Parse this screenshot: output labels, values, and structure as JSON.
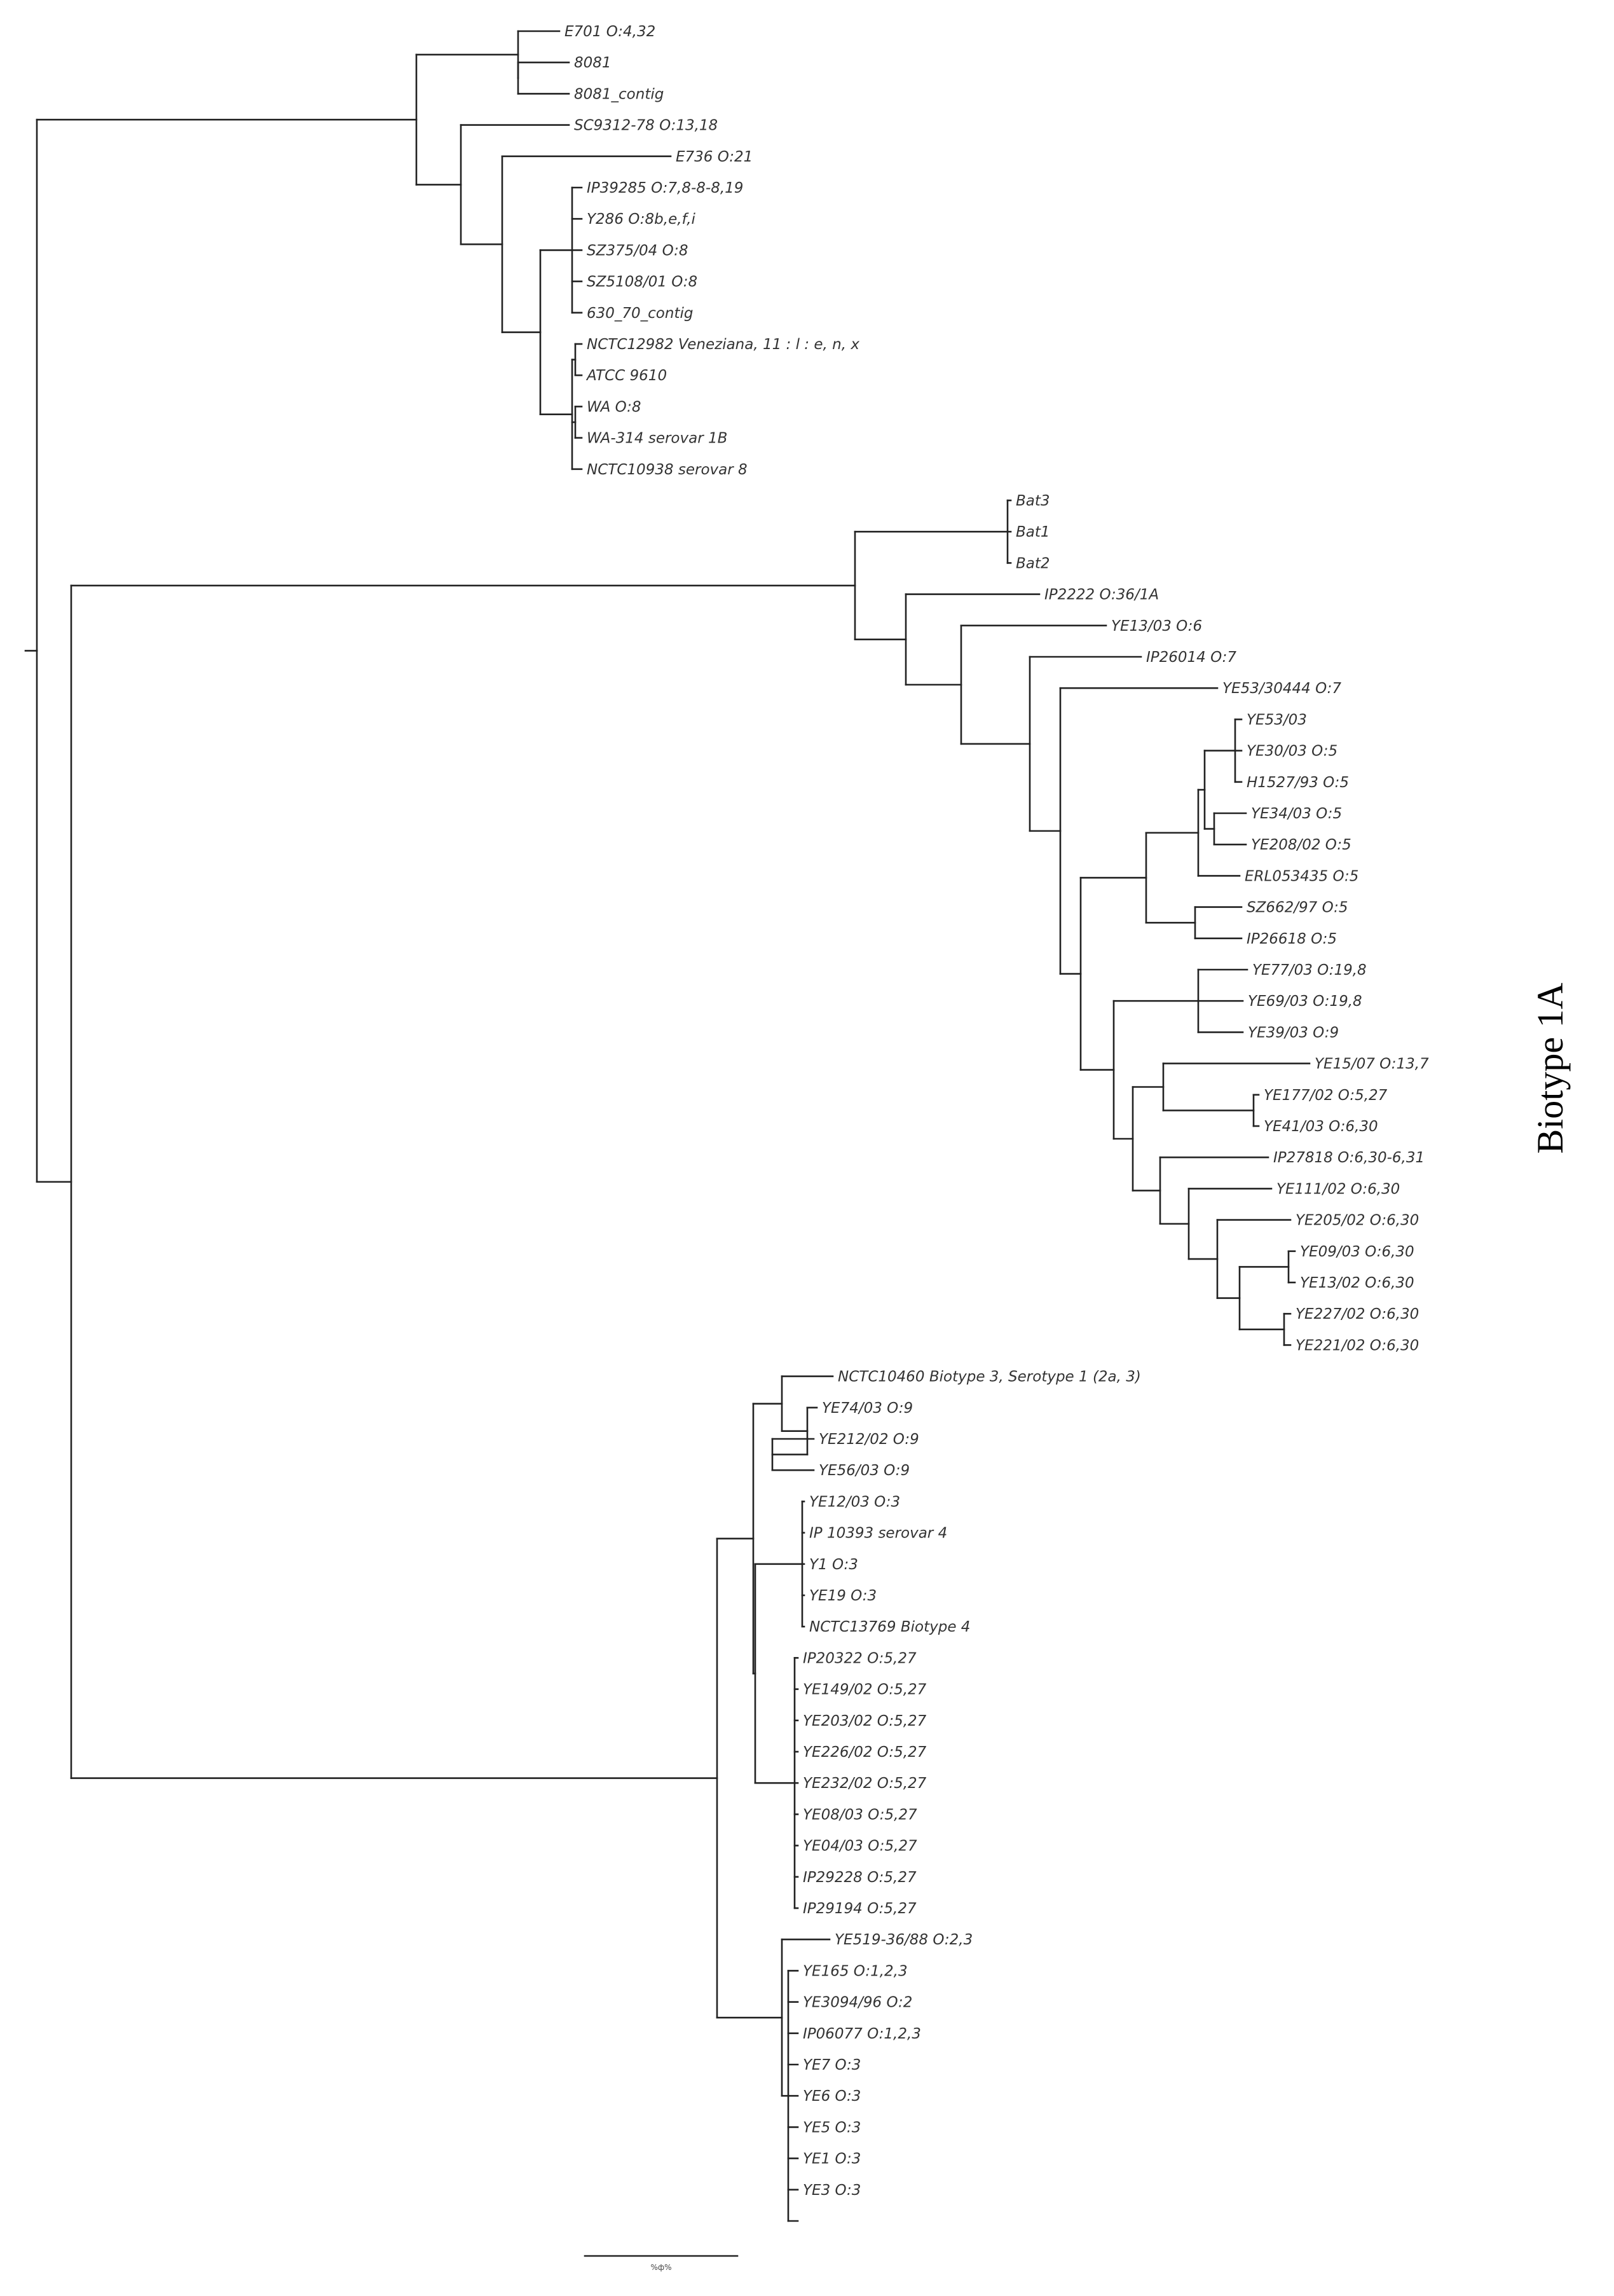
{
  "annotation": {
    "label": "Biotype 1A"
  },
  "scale_bar": {
    "label": "%ф%"
  },
  "taxa": [
    "E701 O:4,32",
    "8081",
    "8081_contig",
    "SC9312-78 O:13,18",
    "E736 O:21",
    "IP39285 O:7,8-8-8,19",
    "Y286 O:8b,e,f,i",
    "SZ375/04 O:8",
    "SZ5108/01 O:8",
    "630_70_contig",
    "NCTC12982 Veneziana, 11 : l : e, n, x",
    "ATCC 9610",
    "WA O:8",
    "WA-314 serovar 1B",
    "NCTC10938 serovar 8",
    "Bat3",
    "Bat1",
    "Bat2",
    "IP2222 O:36/1A",
    "YE13/03 O:6",
    "IP26014 O:7",
    "YE53/30444 O:7",
    "YE53/03",
    "YE30/03 O:5",
    "H1527/93 O:5",
    "YE34/03 O:5",
    "YE208/02 O:5",
    "ERL053435 O:5",
    "SZ662/97 O:5",
    "IP26618 O:5",
    "YE77/03 O:19,8",
    "YE69/03 O:19,8",
    "YE39/03 O:9",
    "YE15/07 O:13,7",
    "YE177/02 O:5,27",
    "YE41/03 O:6,30",
    "IP27818 O:6,30-6,31",
    "YE111/02 O:6,30",
    "YE205/02 O:6,30",
    "YE09/03 O:6,30",
    "YE13/02 O:6,30",
    "YE227/02 O:6,30",
    "YE221/02 O:6,30",
    "NCTC10460 Biotype 3, Serotype 1 (2a, 3)",
    "YE74/03 O:9",
    "YE212/02 O:9",
    "YE56/03 O:9",
    "YE12/03 O:3",
    "IP 10393 serovar 4",
    "Y1 O:3",
    "YE19 O:3",
    "NCTC13769 Biotype 4",
    "IP20322 O:5,27",
    "YE149/02 O:5,27",
    "YE203/02 O:5,27",
    "YE226/02 O:5,27",
    "YE232/02 O:5,27",
    "YE08/03 O:5,27",
    "YE04/03 O:5,27",
    "IP29228 O:5,27",
    "IP29194 O:5,27",
    "YE519-36/88 O:2,3",
    "YE165 O:1,2,3",
    "YE3094/96 O:2",
    "IP06077 O:1,2,3",
    "YE7 O:3",
    "YE6 O:3",
    "YE5 O:3",
    "YE1 O:3",
    "YE3 O:3"
  ]
}
